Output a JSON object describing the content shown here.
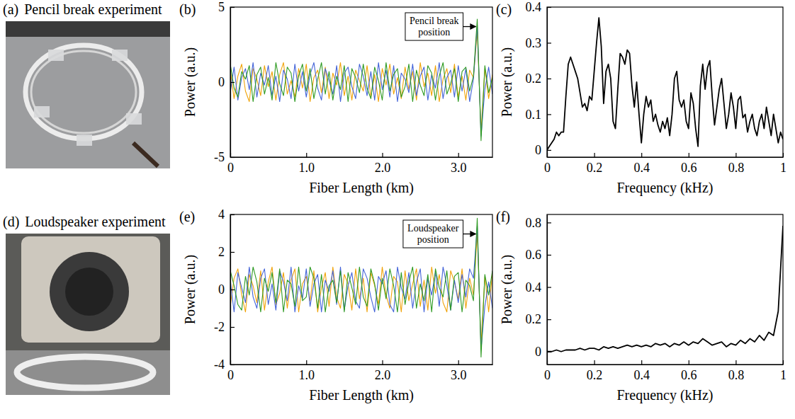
{
  "photos": [
    {
      "label": "(a)",
      "title": "Pencil break experiment"
    },
    {
      "label": "(d)",
      "title": "Loudspeaker experiment"
    }
  ],
  "chart_data": [
    {
      "type": "line",
      "panel_label": "(b)",
      "x_label": "Fiber Length (km)",
      "y_label": "Power (a.u.)",
      "annotation": {
        "text": "Pencil break position",
        "x": 3.25
      },
      "x": [
        0,
        0.05,
        0.1,
        0.15,
        0.2,
        0.25,
        0.3,
        0.35,
        0.4,
        0.45,
        0.5,
        0.55,
        0.6,
        0.65,
        0.7,
        0.75,
        0.8,
        0.85,
        0.9,
        0.95,
        1,
        1.05,
        1.1,
        1.15,
        1.2,
        1.25,
        1.3,
        1.35,
        1.4,
        1.45,
        1.5,
        1.55,
        1.6,
        1.65,
        1.7,
        1.75,
        1.8,
        1.85,
        1.9,
        1.95,
        2,
        2.05,
        2.1,
        2.15,
        2.2,
        2.25,
        2.3,
        2.35,
        2.4,
        2.45,
        2.5,
        2.55,
        2.6,
        2.65,
        2.7,
        2.75,
        2.8,
        2.85,
        2.9,
        2.95,
        3,
        3.05,
        3.1,
        3.15,
        3.2,
        3.25,
        3.3,
        3.35,
        3.4,
        3.45
      ],
      "series": [
        {
          "color": "#f0a30a",
          "values": [
            0.8,
            -1.1,
            0.4,
            1.2,
            -0.6,
            -1.3,
            0.9,
            0.2,
            -0.9,
            1.1,
            -0.3,
            0.7,
            -1.2,
            0.5,
            1.3,
            -0.8,
            0.1,
            -1.0,
            0.9,
            -0.4,
            1.2,
            -1.3,
            0.3,
            0.8,
            -0.7,
            1.0,
            -1.1,
            0.6,
            -0.2,
            1.3,
            -0.9,
            0.4,
            -1.2,
            0.8,
            0.1,
            -0.6,
            1.1,
            -1.0,
            0.5,
            -1.3,
            0.9,
            -0.2,
            1.2,
            -0.8,
            0.3,
            -1.1,
            1.0,
            -0.5,
            0.7,
            -1.2,
            1.3,
            -0.3,
            0.6,
            -0.9,
            1.1,
            -1.3,
            0.2,
            0.9,
            -0.7,
            1.2,
            -1.0,
            0.4,
            -1.2,
            0.8,
            0.3,
            3.4,
            -3.3,
            0.9,
            -1.1,
            0.5
          ]
        },
        {
          "color": "#4363d8",
          "values": [
            -0.7,
            1.0,
            -1.2,
            0.3,
            0.9,
            -0.5,
            1.3,
            -1.0,
            0.6,
            -0.2,
            1.1,
            -0.9,
            0.4,
            -1.3,
            0.8,
            0.2,
            -1.1,
            1.2,
            -0.6,
            0.7,
            -1.0,
            0.5,
            1.3,
            -0.4,
            -1.2,
            0.9,
            0.1,
            -0.8,
            1.1,
            -1.3,
            0.6,
            1.0,
            -0.3,
            -1.1,
            1.2,
            0.4,
            -0.9,
            0.7,
            -1.2,
            1.3,
            -0.5,
            0.8,
            -1.0,
            1.1,
            -1.3,
            0.6,
            0.2,
            -0.7,
            1.2,
            -0.9,
            0.4,
            1.0,
            -1.2,
            0.5,
            -0.4,
            1.3,
            -1.1,
            0.3,
            0.8,
            -1.0,
            1.1,
            -0.6,
            0.9,
            -1.3,
            0.2,
            3.8,
            -3.6,
            -0.5,
            1.0,
            -0.8
          ]
        },
        {
          "color": "#2e9a22",
          "values": [
            1.2,
            -0.4,
            -1.0,
            0.7,
            0.2,
            1.1,
            -1.3,
            0.5,
            1.0,
            -0.8,
            0.3,
            -1.2,
            1.3,
            -0.1,
            -0.9,
            1.0,
            0.6,
            -1.3,
            0.4,
            1.2,
            -0.6,
            0.9,
            -1.1,
            0.2,
            1.3,
            -0.8,
            0.7,
            -1.2,
            0.4,
            -0.5,
            1.1,
            -1.3,
            0.9,
            0.3,
            -0.7,
            1.2,
            -0.4,
            -1.1,
            1.0,
            0.1,
            -1.2,
            1.3,
            -0.6,
            0.5,
            0.9,
            -1.0,
            -0.3,
            1.2,
            -1.3,
            0.8,
            -0.2,
            -0.9,
            1.1,
            0.6,
            -1.2,
            0.4,
            1.3,
            -0.8,
            -0.1,
            0.9,
            -1.3,
            0.7,
            1.0,
            -0.6,
            0.4,
            4.2,
            -3.9,
            1.1,
            -0.7,
            0.3
          ]
        }
      ],
      "xlim": [
        0,
        3.45
      ],
      "xticks": [
        0,
        {
          "value": 1,
          "label": "1.0"
        },
        {
          "value": 2,
          "label": "2.0"
        },
        {
          "value": 3,
          "label": "3.0"
        }
      ],
      "ylim": [
        -5,
        5
      ],
      "yticks": [
        -5,
        0,
        5
      ]
    },
    {
      "type": "line",
      "panel_label": "(c)",
      "x_label": "Frequency (kHz)",
      "y_label": "Power (a.u.)",
      "x": [
        0,
        0.01,
        0.02,
        0.03,
        0.04,
        0.05,
        0.06,
        0.07,
        0.08,
        0.09,
        0.1,
        0.11,
        0.12,
        0.13,
        0.14,
        0.15,
        0.16,
        0.17,
        0.18,
        0.19,
        0.2,
        0.21,
        0.22,
        0.23,
        0.24,
        0.25,
        0.26,
        0.27,
        0.28,
        0.29,
        0.3,
        0.31,
        0.32,
        0.33,
        0.34,
        0.35,
        0.36,
        0.37,
        0.38,
        0.39,
        0.4,
        0.41,
        0.42,
        0.43,
        0.44,
        0.45,
        0.46,
        0.47,
        0.48,
        0.49,
        0.5,
        0.51,
        0.52,
        0.53,
        0.54,
        0.55,
        0.56,
        0.57,
        0.58,
        0.59,
        0.6,
        0.61,
        0.62,
        0.63,
        0.64,
        0.65,
        0.66,
        0.67,
        0.68,
        0.69,
        0.7,
        0.71,
        0.72,
        0.73,
        0.74,
        0.75,
        0.76,
        0.77,
        0.78,
        0.79,
        0.8,
        0.81,
        0.82,
        0.83,
        0.84,
        0.85,
        0.86,
        0.87,
        0.88,
        0.89,
        0.9,
        0.91,
        0.92,
        0.93,
        0.94,
        0.95,
        0.96,
        0.97,
        0.98,
        0.99,
        1
      ],
      "series": [
        {
          "color": "#000000",
          "values": [
            0.0,
            0.01,
            0.02,
            0.03,
            0.05,
            0.04,
            0.05,
            0.05,
            0.15,
            0.24,
            0.26,
            0.24,
            0.22,
            0.2,
            0.16,
            0.12,
            0.13,
            0.11,
            0.15,
            0.14,
            0.22,
            0.3,
            0.37,
            0.29,
            0.13,
            0.22,
            0.24,
            0.2,
            0.08,
            0.06,
            0.17,
            0.27,
            0.26,
            0.24,
            0.28,
            0.27,
            0.18,
            0.12,
            0.19,
            0.1,
            0.02,
            0.1,
            0.15,
            0.12,
            0.14,
            0.08,
            0.1,
            0.07,
            0.05,
            0.08,
            0.06,
            0.09,
            0.04,
            0.1,
            0.2,
            0.22,
            0.14,
            0.12,
            0.14,
            0.08,
            0.06,
            0.16,
            0.13,
            0.06,
            0.01,
            0.18,
            0.24,
            0.17,
            0.23,
            0.25,
            0.15,
            0.07,
            0.12,
            0.17,
            0.2,
            0.13,
            0.06,
            0.1,
            0.16,
            0.12,
            0.06,
            0.14,
            0.15,
            0.09,
            0.1,
            0.05,
            0.08,
            0.1,
            0.06,
            0.04,
            0.08,
            0.1,
            0.06,
            0.12,
            0.08,
            0.04,
            0.1,
            0.06,
            0.02,
            0.05,
            0.03
          ]
        }
      ],
      "xlim": [
        0,
        1
      ],
      "xticks": [
        0,
        0.2,
        0.4,
        0.6,
        0.8,
        1
      ],
      "ylim": [
        -0.02,
        0.4
      ],
      "yticks": [
        0,
        0.1,
        0.2,
        0.3,
        0.4
      ]
    },
    {
      "type": "line",
      "panel_label": "(e)",
      "x_label": "Fiber Length (km)",
      "y_label": "Power (a.u.)",
      "annotation": {
        "text": "Loudspeaker position",
        "x": 3.25
      },
      "x": [
        0,
        0.05,
        0.1,
        0.15,
        0.2,
        0.25,
        0.3,
        0.35,
        0.4,
        0.45,
        0.5,
        0.55,
        0.6,
        0.65,
        0.7,
        0.75,
        0.8,
        0.85,
        0.9,
        0.95,
        1,
        1.05,
        1.1,
        1.15,
        1.2,
        1.25,
        1.3,
        1.35,
        1.4,
        1.45,
        1.5,
        1.55,
        1.6,
        1.65,
        1.7,
        1.75,
        1.8,
        1.85,
        1.9,
        1.95,
        2,
        2.05,
        2.1,
        2.15,
        2.2,
        2.25,
        2.3,
        2.35,
        2.4,
        2.45,
        2.5,
        2.55,
        2.6,
        2.65,
        2.7,
        2.75,
        2.8,
        2.85,
        2.9,
        2.95,
        3,
        3.05,
        3.1,
        3.15,
        3.2,
        3.25,
        3.3,
        3.35,
        3.4,
        3.45
      ],
      "series": [
        {
          "color": "#f0a30a",
          "values": [
            -0.9,
            0.6,
            1.1,
            -0.3,
            -1.2,
            0.8,
            0.2,
            -0.7,
            1.0,
            -1.1,
            0.4,
            1.2,
            -0.8,
            -0.2,
            0.9,
            -1.0,
            0.5,
            1.1,
            -1.2,
            0.3,
            0.7,
            -0.6,
            1.0,
            -1.2,
            0.1,
            0.9,
            -0.9,
            1.2,
            -0.4,
            -1.0,
            0.8,
            0.3,
            -1.1,
            1.1,
            -0.5,
            0.6,
            -1.2,
            0.9,
            0.2,
            -0.8,
            1.2,
            -0.3,
            -1.0,
            0.7,
            0.4,
            -1.2,
            1.0,
            -0.6,
            0.3,
            1.1,
            -0.9,
            0.5,
            -1.1,
            1.2,
            -0.2,
            0.8,
            -0.7,
            -1.2,
            1.0,
            0.4,
            -0.5,
            1.1,
            -1.0,
            0.6,
            -0.3,
            3.0,
            -2.9,
            0.7,
            -1.2,
            0.9
          ]
        },
        {
          "color": "#4363d8",
          "values": [
            0.5,
            -1.2,
            0.9,
            0.1,
            -0.7,
            1.2,
            -0.4,
            -1.0,
            0.6,
            1.1,
            -0.8,
            0.3,
            -1.1,
            1.0,
            0.4,
            -0.6,
            1.2,
            -1.2,
            0.2,
            -0.5,
            1.1,
            -0.9,
            0.3,
            0.8,
            -1.2,
            0.5,
            -0.1,
            1.0,
            -0.8,
            1.2,
            -1.1,
            0.2,
            0.9,
            -0.6,
            -1.0,
            1.1,
            0.6,
            -0.4,
            -1.2,
            0.7,
            0.3,
            1.0,
            -0.8,
            -1.2,
            1.2,
            0.1,
            -0.5,
            0.9,
            -1.0,
            0.4,
            1.1,
            -1.2,
            0.6,
            -0.3,
            0.9,
            -0.9,
            1.2,
            0.2,
            -1.1,
            0.5,
            -0.7,
            0.8,
            -0.4,
            1.1,
            0.6,
            3.4,
            -3.2,
            -0.9,
            0.4,
            -1.0
          ]
        },
        {
          "color": "#2e9a22",
          "values": [
            1.0,
            0.2,
            -0.8,
            -1.1,
            0.7,
            -0.3,
            1.2,
            0.4,
            -1.2,
            0.6,
            -0.1,
            0.9,
            -0.7,
            1.1,
            -1.2,
            0.5,
            0.3,
            -0.9,
            1.2,
            -0.6,
            -0.4,
            1.2,
            0.6,
            -1.0,
            0.8,
            -1.2,
            0.2,
            0.5,
            -0.7,
            1.0,
            -1.2,
            0.9,
            0.1,
            -0.8,
            1.2,
            -0.4,
            -0.9,
            1.1,
            0.3,
            -1.1,
            0.6,
            -0.5,
            1.1,
            0.2,
            -1.2,
            0.9,
            -0.8,
            0.4,
            1.2,
            -1.0,
            0.3,
            -0.6,
            0.8,
            -1.2,
            1.1,
            0.1,
            -0.4,
            1.0,
            -1.1,
            0.7,
            0.9,
            -1.2,
            0.5,
            0.2,
            -0.6,
            3.8,
            -3.6,
            0.8,
            -0.3,
            1.0
          ]
        }
      ],
      "xlim": [
        0,
        3.45
      ],
      "xticks": [
        0,
        {
          "value": 1,
          "label": "1.0"
        },
        {
          "value": 2,
          "label": "2.0"
        },
        {
          "value": 3,
          "label": "3.0"
        }
      ],
      "ylim": [
        -4,
        4
      ],
      "yticks": [
        -4,
        -2,
        0,
        2,
        4
      ]
    },
    {
      "type": "line",
      "panel_label": "(f)",
      "x_label": "Frequency (kHz)",
      "y_label": "Power (a.u.)",
      "x": [
        0,
        0.02,
        0.04,
        0.06,
        0.08,
        0.1,
        0.12,
        0.14,
        0.16,
        0.18,
        0.2,
        0.22,
        0.24,
        0.26,
        0.28,
        0.3,
        0.32,
        0.34,
        0.36,
        0.38,
        0.4,
        0.42,
        0.44,
        0.46,
        0.48,
        0.5,
        0.52,
        0.54,
        0.56,
        0.58,
        0.6,
        0.62,
        0.64,
        0.66,
        0.68,
        0.7,
        0.72,
        0.74,
        0.76,
        0.78,
        0.8,
        0.82,
        0.84,
        0.86,
        0.88,
        0.9,
        0.92,
        0.94,
        0.96,
        0.98,
        1
      ],
      "series": [
        {
          "color": "#000000",
          "values": [
            0.0,
            0.0,
            0.01,
            0.0,
            0.01,
            0.01,
            0.01,
            0.02,
            0.01,
            0.02,
            0.02,
            0.01,
            0.03,
            0.02,
            0.03,
            0.02,
            0.03,
            0.04,
            0.03,
            0.04,
            0.03,
            0.04,
            0.03,
            0.05,
            0.04,
            0.05,
            0.03,
            0.05,
            0.04,
            0.06,
            0.04,
            0.06,
            0.05,
            0.08,
            0.06,
            0.04,
            0.05,
            0.06,
            0.03,
            0.05,
            0.04,
            0.07,
            0.05,
            0.08,
            0.06,
            0.1,
            0.07,
            0.12,
            0.1,
            0.25,
            0.78
          ]
        }
      ],
      "xlim": [
        0,
        1
      ],
      "xticks": [
        0,
        0.2,
        0.4,
        0.6,
        0.8,
        1
      ],
      "ylim": [
        -0.08,
        0.85
      ],
      "yticks": [
        0,
        0.2,
        0.4,
        0.6,
        0.8
      ]
    }
  ]
}
